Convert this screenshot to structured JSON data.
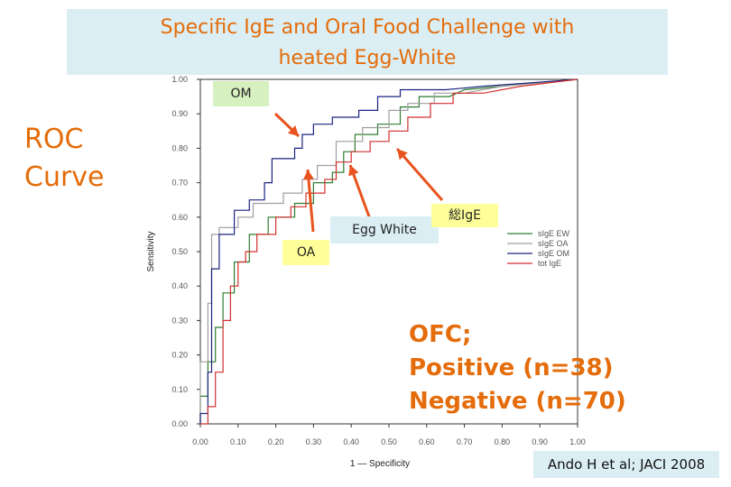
{
  "title": {
    "line1": "Specific IgE and Oral Food Challenge with",
    "line2": "heated Egg-White"
  },
  "side_label": {
    "line1": "ROC",
    "line2": "Curve"
  },
  "callouts": {
    "om": "OM",
    "oa": "OA",
    "egg_white": "Egg White",
    "total_ige": "総IgE"
  },
  "ofc": {
    "line1": "OFC;",
    "line2": "Positive (n=38)",
    "line3": "Negative (n=70)"
  },
  "citation": "Ando H et al; JACI 2008",
  "colors": {
    "accent": "#e46c0a",
    "title_bg": "#dbeef4",
    "callout_bg": "#ffff99",
    "callout_bg_blue": "#dbeef4",
    "arrow": "#e8531e"
  },
  "chart_data": {
    "type": "line",
    "title": "",
    "xlabel": "1 — Specificity",
    "ylabel": "Sensitivity",
    "xlim": [
      0,
      1
    ],
    "ylim": [
      0,
      1
    ],
    "x_ticks": [
      "0.00",
      "0.10",
      "0.20",
      "0.30",
      "0.40",
      "0.50",
      "0.60",
      "0.70",
      "0.80",
      "0.90",
      "1.00"
    ],
    "y_ticks": [
      "0.00",
      "0.10",
      "0.20",
      "0.30",
      "0.40",
      "0.50",
      "0.60",
      "0.70",
      "0.80",
      "0.90",
      "1.00"
    ],
    "grid": false,
    "legend_position": "right",
    "series": [
      {
        "name": "sIgE EW",
        "color": "#2e7d32",
        "points": [
          [
            0,
            0
          ],
          [
            0,
            0.08
          ],
          [
            0.02,
            0.08
          ],
          [
            0.02,
            0.18
          ],
          [
            0.04,
            0.18
          ],
          [
            0.04,
            0.28
          ],
          [
            0.06,
            0.28
          ],
          [
            0.06,
            0.38
          ],
          [
            0.09,
            0.38
          ],
          [
            0.09,
            0.47
          ],
          [
            0.13,
            0.47
          ],
          [
            0.13,
            0.55
          ],
          [
            0.18,
            0.55
          ],
          [
            0.18,
            0.6
          ],
          [
            0.25,
            0.6
          ],
          [
            0.25,
            0.64
          ],
          [
            0.3,
            0.64
          ],
          [
            0.3,
            0.7
          ],
          [
            0.35,
            0.7
          ],
          [
            0.35,
            0.73
          ],
          [
            0.38,
            0.73
          ],
          [
            0.38,
            0.79
          ],
          [
            0.41,
            0.79
          ],
          [
            0.41,
            0.84
          ],
          [
            0.47,
            0.84
          ],
          [
            0.47,
            0.87
          ],
          [
            0.53,
            0.87
          ],
          [
            0.53,
            0.92
          ],
          [
            0.58,
            0.92
          ],
          [
            0.58,
            0.95
          ],
          [
            0.66,
            0.95
          ],
          [
            0.7,
            0.97
          ],
          [
            0.8,
            0.98
          ],
          [
            1,
            1
          ]
        ]
      },
      {
        "name": "sIgE OA",
        "color": "#9e9e9e",
        "points": [
          [
            0,
            0
          ],
          [
            0,
            0.18
          ],
          [
            0.02,
            0.18
          ],
          [
            0.02,
            0.35
          ],
          [
            0.03,
            0.35
          ],
          [
            0.03,
            0.55
          ],
          [
            0.05,
            0.55
          ],
          [
            0.05,
            0.57
          ],
          [
            0.1,
            0.57
          ],
          [
            0.1,
            0.6
          ],
          [
            0.14,
            0.6
          ],
          [
            0.14,
            0.64
          ],
          [
            0.22,
            0.64
          ],
          [
            0.22,
            0.67
          ],
          [
            0.27,
            0.67
          ],
          [
            0.27,
            0.71
          ],
          [
            0.31,
            0.71
          ],
          [
            0.31,
            0.75
          ],
          [
            0.36,
            0.75
          ],
          [
            0.36,
            0.82
          ],
          [
            0.43,
            0.82
          ],
          [
            0.43,
            0.86
          ],
          [
            0.5,
            0.86
          ],
          [
            0.5,
            0.91
          ],
          [
            0.55,
            0.91
          ],
          [
            0.55,
            0.93
          ],
          [
            0.62,
            0.93
          ],
          [
            0.62,
            0.96
          ],
          [
            0.7,
            0.96
          ],
          [
            0.8,
            0.98
          ],
          [
            1,
            1
          ]
        ]
      },
      {
        "name": "sIgE OM",
        "color": "#1a237e",
        "points": [
          [
            0,
            0
          ],
          [
            0,
            0.03
          ],
          [
            0.02,
            0.03
          ],
          [
            0.02,
            0.15
          ],
          [
            0.03,
            0.15
          ],
          [
            0.03,
            0.45
          ],
          [
            0.05,
            0.45
          ],
          [
            0.05,
            0.55
          ],
          [
            0.09,
            0.55
          ],
          [
            0.09,
            0.62
          ],
          [
            0.13,
            0.62
          ],
          [
            0.13,
            0.65
          ],
          [
            0.17,
            0.65
          ],
          [
            0.17,
            0.7
          ],
          [
            0.19,
            0.7
          ],
          [
            0.19,
            0.77
          ],
          [
            0.25,
            0.77
          ],
          [
            0.25,
            0.8
          ],
          [
            0.27,
            0.8
          ],
          [
            0.27,
            0.84
          ],
          [
            0.3,
            0.84
          ],
          [
            0.3,
            0.87
          ],
          [
            0.35,
            0.87
          ],
          [
            0.35,
            0.89
          ],
          [
            0.42,
            0.89
          ],
          [
            0.42,
            0.91
          ],
          [
            0.47,
            0.91
          ],
          [
            0.47,
            0.95
          ],
          [
            0.53,
            0.95
          ],
          [
            0.53,
            0.97
          ],
          [
            0.65,
            0.97
          ],
          [
            0.75,
            0.98
          ],
          [
            1,
            1
          ]
        ]
      },
      {
        "name": "tot IgE",
        "color": "#d32f2f",
        "points": [
          [
            0,
            0
          ],
          [
            0.02,
            0
          ],
          [
            0.02,
            0.05
          ],
          [
            0.04,
            0.05
          ],
          [
            0.04,
            0.15
          ],
          [
            0.06,
            0.15
          ],
          [
            0.06,
            0.3
          ],
          [
            0.08,
            0.3
          ],
          [
            0.08,
            0.4
          ],
          [
            0.1,
            0.4
          ],
          [
            0.1,
            0.47
          ],
          [
            0.12,
            0.47
          ],
          [
            0.12,
            0.5
          ],
          [
            0.15,
            0.5
          ],
          [
            0.15,
            0.55
          ],
          [
            0.2,
            0.55
          ],
          [
            0.2,
            0.6
          ],
          [
            0.24,
            0.6
          ],
          [
            0.24,
            0.63
          ],
          [
            0.28,
            0.63
          ],
          [
            0.28,
            0.67
          ],
          [
            0.33,
            0.67
          ],
          [
            0.33,
            0.71
          ],
          [
            0.36,
            0.71
          ],
          [
            0.36,
            0.76
          ],
          [
            0.4,
            0.76
          ],
          [
            0.4,
            0.79
          ],
          [
            0.45,
            0.79
          ],
          [
            0.45,
            0.82
          ],
          [
            0.5,
            0.82
          ],
          [
            0.5,
            0.85
          ],
          [
            0.55,
            0.85
          ],
          [
            0.55,
            0.89
          ],
          [
            0.61,
            0.89
          ],
          [
            0.61,
            0.93
          ],
          [
            0.67,
            0.93
          ],
          [
            0.67,
            0.96
          ],
          [
            0.75,
            0.96
          ],
          [
            0.85,
            0.98
          ],
          [
            1,
            1
          ]
        ]
      }
    ]
  }
}
